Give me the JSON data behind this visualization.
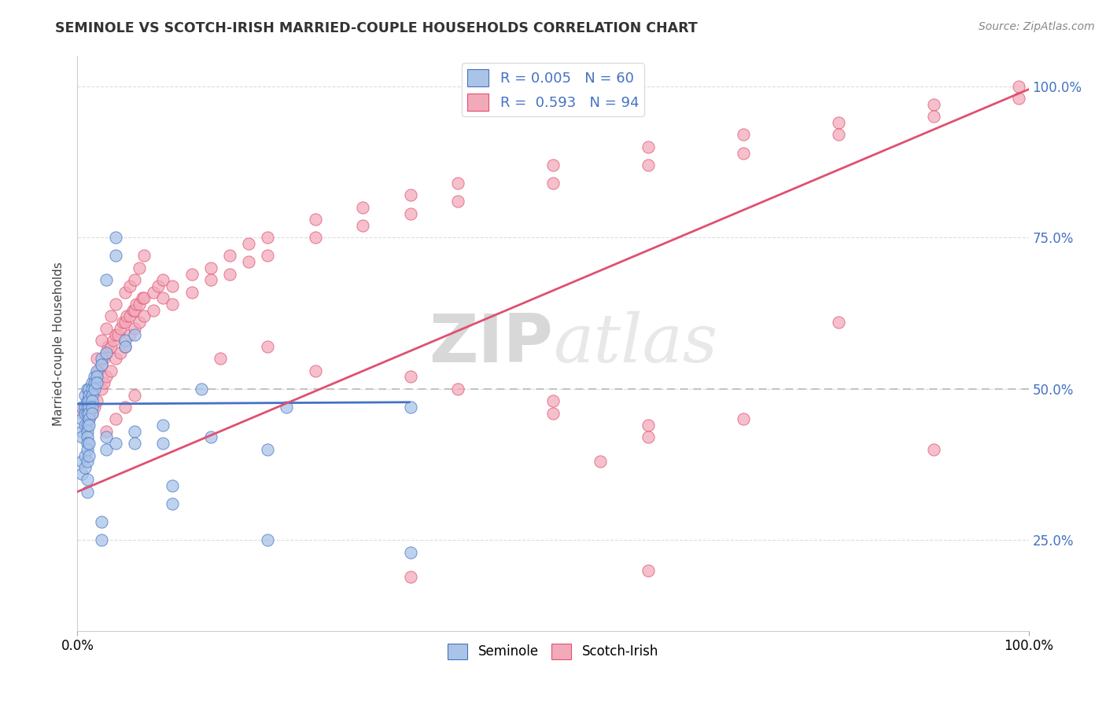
{
  "title": "SEMINOLE VS SCOTCH-IRISH MARRIED-COUPLE HOUSEHOLDS CORRELATION CHART",
  "source": "Source: ZipAtlas.com",
  "ylabel": "Married-couple Households",
  "xlabel": "",
  "xlim": [
    0.0,
    1.0
  ],
  "ylim": [
    0.1,
    1.05
  ],
  "xtick_labels": [
    "0.0%",
    "100.0%"
  ],
  "ytick_labels": [
    "25.0%",
    "50.0%",
    "75.0%",
    "100.0%"
  ],
  "ytick_vals": [
    0.25,
    0.5,
    0.75,
    1.0
  ],
  "watermark_zip": "ZIP",
  "watermark_atlas": "atlas",
  "seminole_color": "#aac4e8",
  "scotchirish_color": "#f2aabb",
  "trend_seminole_color": "#4472c4",
  "trend_scotchirish_color": "#e05070",
  "dashed_line_color": "#bbbbbb",
  "seminole_trend_x": [
    0.0,
    0.35
  ],
  "seminole_trend_y": [
    0.475,
    0.478
  ],
  "scotchirish_trend_x": [
    0.0,
    1.0
  ],
  "scotchirish_trend_y": [
    0.33,
    0.995
  ],
  "seminole_points": [
    [
      0.005,
      0.47
    ],
    [
      0.005,
      0.45
    ],
    [
      0.005,
      0.43
    ],
    [
      0.005,
      0.42
    ],
    [
      0.008,
      0.49
    ],
    [
      0.008,
      0.47
    ],
    [
      0.008,
      0.46
    ],
    [
      0.008,
      0.44
    ],
    [
      0.01,
      0.5
    ],
    [
      0.01,
      0.48
    ],
    [
      0.01,
      0.47
    ],
    [
      0.01,
      0.46
    ],
    [
      0.01,
      0.44
    ],
    [
      0.01,
      0.43
    ],
    [
      0.01,
      0.42
    ],
    [
      0.01,
      0.41
    ],
    [
      0.012,
      0.5
    ],
    [
      0.012,
      0.49
    ],
    [
      0.012,
      0.48
    ],
    [
      0.012,
      0.47
    ],
    [
      0.012,
      0.46
    ],
    [
      0.012,
      0.45
    ],
    [
      0.012,
      0.44
    ],
    [
      0.015,
      0.51
    ],
    [
      0.015,
      0.5
    ],
    [
      0.015,
      0.49
    ],
    [
      0.015,
      0.48
    ],
    [
      0.015,
      0.47
    ],
    [
      0.015,
      0.46
    ],
    [
      0.018,
      0.52
    ],
    [
      0.018,
      0.51
    ],
    [
      0.018,
      0.5
    ],
    [
      0.02,
      0.53
    ],
    [
      0.02,
      0.52
    ],
    [
      0.02,
      0.51
    ],
    [
      0.025,
      0.55
    ],
    [
      0.025,
      0.54
    ],
    [
      0.03,
      0.56
    ],
    [
      0.04,
      0.72
    ],
    [
      0.04,
      0.75
    ],
    [
      0.03,
      0.68
    ],
    [
      0.05,
      0.58
    ],
    [
      0.05,
      0.57
    ],
    [
      0.06,
      0.59
    ],
    [
      0.03,
      0.4
    ],
    [
      0.03,
      0.42
    ],
    [
      0.04,
      0.41
    ],
    [
      0.005,
      0.38
    ],
    [
      0.005,
      0.36
    ],
    [
      0.008,
      0.39
    ],
    [
      0.008,
      0.37
    ],
    [
      0.01,
      0.4
    ],
    [
      0.01,
      0.38
    ],
    [
      0.012,
      0.41
    ],
    [
      0.012,
      0.39
    ],
    [
      0.01,
      0.35
    ],
    [
      0.01,
      0.33
    ],
    [
      0.13,
      0.5
    ],
    [
      0.22,
      0.47
    ],
    [
      0.35,
      0.47
    ],
    [
      0.14,
      0.42
    ],
    [
      0.2,
      0.4
    ],
    [
      0.09,
      0.44
    ],
    [
      0.09,
      0.41
    ],
    [
      0.06,
      0.43
    ],
    [
      0.06,
      0.41
    ],
    [
      0.025,
      0.28
    ],
    [
      0.025,
      0.25
    ],
    [
      0.1,
      0.34
    ],
    [
      0.1,
      0.31
    ],
    [
      0.2,
      0.25
    ],
    [
      0.35,
      0.23
    ]
  ],
  "scotchirish_points": [
    [
      0.005,
      0.46
    ],
    [
      0.007,
      0.47
    ],
    [
      0.01,
      0.48
    ],
    [
      0.012,
      0.49
    ],
    [
      0.015,
      0.5
    ],
    [
      0.018,
      0.51
    ],
    [
      0.02,
      0.52
    ],
    [
      0.022,
      0.53
    ],
    [
      0.025,
      0.54
    ],
    [
      0.028,
      0.55
    ],
    [
      0.03,
      0.56
    ],
    [
      0.032,
      0.57
    ],
    [
      0.035,
      0.57
    ],
    [
      0.038,
      0.58
    ],
    [
      0.04,
      0.59
    ],
    [
      0.043,
      0.59
    ],
    [
      0.045,
      0.6
    ],
    [
      0.048,
      0.61
    ],
    [
      0.05,
      0.61
    ],
    [
      0.052,
      0.62
    ],
    [
      0.055,
      0.62
    ],
    [
      0.058,
      0.63
    ],
    [
      0.06,
      0.63
    ],
    [
      0.062,
      0.64
    ],
    [
      0.065,
      0.64
    ],
    [
      0.068,
      0.65
    ],
    [
      0.07,
      0.65
    ],
    [
      0.012,
      0.45
    ],
    [
      0.015,
      0.46
    ],
    [
      0.018,
      0.47
    ],
    [
      0.02,
      0.48
    ],
    [
      0.025,
      0.5
    ],
    [
      0.028,
      0.51
    ],
    [
      0.03,
      0.52
    ],
    [
      0.035,
      0.53
    ],
    [
      0.04,
      0.55
    ],
    [
      0.045,
      0.56
    ],
    [
      0.05,
      0.57
    ],
    [
      0.055,
      0.59
    ],
    [
      0.06,
      0.6
    ],
    [
      0.065,
      0.61
    ],
    [
      0.07,
      0.62
    ],
    [
      0.02,
      0.55
    ],
    [
      0.025,
      0.58
    ],
    [
      0.03,
      0.6
    ],
    [
      0.035,
      0.62
    ],
    [
      0.04,
      0.64
    ],
    [
      0.05,
      0.66
    ],
    [
      0.055,
      0.67
    ],
    [
      0.06,
      0.68
    ],
    [
      0.065,
      0.7
    ],
    [
      0.07,
      0.72
    ],
    [
      0.08,
      0.66
    ],
    [
      0.085,
      0.67
    ],
    [
      0.09,
      0.68
    ],
    [
      0.08,
      0.63
    ],
    [
      0.09,
      0.65
    ],
    [
      0.1,
      0.67
    ],
    [
      0.1,
      0.64
    ],
    [
      0.12,
      0.69
    ],
    [
      0.12,
      0.66
    ],
    [
      0.14,
      0.7
    ],
    [
      0.14,
      0.68
    ],
    [
      0.16,
      0.72
    ],
    [
      0.16,
      0.69
    ],
    [
      0.18,
      0.74
    ],
    [
      0.18,
      0.71
    ],
    [
      0.2,
      0.75
    ],
    [
      0.2,
      0.72
    ],
    [
      0.25,
      0.78
    ],
    [
      0.25,
      0.75
    ],
    [
      0.3,
      0.8
    ],
    [
      0.3,
      0.77
    ],
    [
      0.35,
      0.82
    ],
    [
      0.35,
      0.79
    ],
    [
      0.4,
      0.84
    ],
    [
      0.4,
      0.81
    ],
    [
      0.5,
      0.87
    ],
    [
      0.5,
      0.84
    ],
    [
      0.6,
      0.9
    ],
    [
      0.6,
      0.87
    ],
    [
      0.7,
      0.92
    ],
    [
      0.7,
      0.89
    ],
    [
      0.8,
      0.94
    ],
    [
      0.8,
      0.92
    ],
    [
      0.9,
      0.97
    ],
    [
      0.9,
      0.95
    ],
    [
      0.99,
      1.0
    ],
    [
      0.99,
      0.98
    ],
    [
      0.03,
      0.43
    ],
    [
      0.04,
      0.45
    ],
    [
      0.05,
      0.47
    ],
    [
      0.06,
      0.49
    ],
    [
      0.15,
      0.55
    ],
    [
      0.2,
      0.57
    ],
    [
      0.25,
      0.53
    ],
    [
      0.35,
      0.52
    ],
    [
      0.4,
      0.5
    ],
    [
      0.5,
      0.48
    ],
    [
      0.5,
      0.46
    ],
    [
      0.6,
      0.44
    ],
    [
      0.6,
      0.42
    ],
    [
      0.6,
      0.2
    ],
    [
      0.7,
      0.45
    ],
    [
      0.8,
      0.61
    ],
    [
      0.35,
      0.19
    ],
    [
      0.55,
      0.38
    ],
    [
      0.9,
      0.4
    ]
  ]
}
